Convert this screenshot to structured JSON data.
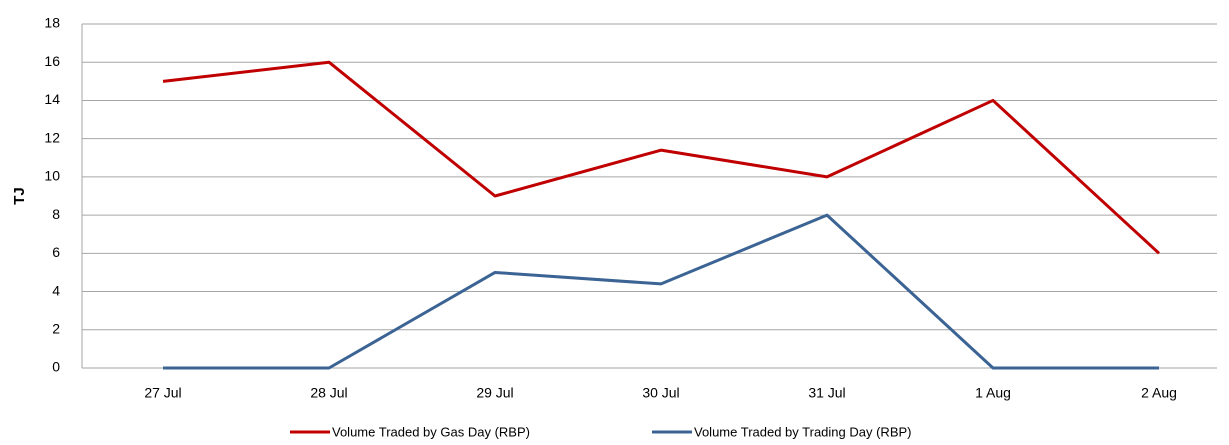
{
  "chart_data": {
    "type": "line",
    "y_label": "TJ",
    "categories": [
      "27 Jul",
      "28 Jul",
      "29 Jul",
      "30 Jul",
      "31 Jul",
      "1 Aug",
      "2 Aug"
    ],
    "series": [
      {
        "name": "Volume Traded by Gas Day (RBP)",
        "color": "#c00000",
        "values": [
          15,
          16,
          9,
          11.4,
          10,
          14,
          6
        ]
      },
      {
        "name": "Volume Traded by Trading Day (RBP)",
        "color": "#3b6494",
        "values": [
          0,
          0,
          5,
          4.4,
          8,
          0,
          0
        ]
      }
    ],
    "ylim": [
      0,
      18
    ],
    "yticks": [
      0,
      2,
      4,
      6,
      8,
      10,
      12,
      14,
      16,
      18
    ],
    "grid": true,
    "legend": "bottom"
  }
}
